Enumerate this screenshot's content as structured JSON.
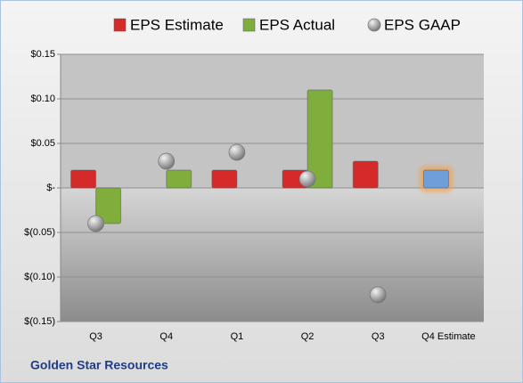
{
  "chart_data": {
    "type": "bar",
    "categories": [
      "Q3",
      "Q4",
      "Q1",
      "Q2",
      "Q3",
      "Q4 Estimate"
    ],
    "series": [
      {
        "name": "EPS Estimate",
        "color": "#d42a2a",
        "values": [
          0.02,
          null,
          0.02,
          0.02,
          0.03,
          0.02
        ],
        "point_colors": [
          "#d42a2a",
          "#d42a2a",
          "#d42a2a",
          "#d42a2a",
          "#d42a2a",
          "#6f9fd8"
        ]
      },
      {
        "name": "EPS Actual",
        "color": "#7fae3c",
        "values": [
          -0.04,
          0.02,
          null,
          0.11,
          null,
          null
        ]
      },
      {
        "name": "EPS GAAP",
        "color": "#a6a6a6",
        "type": "scatter",
        "values": [
          -0.04,
          0.03,
          0.04,
          0.01,
          -0.12,
          null
        ]
      }
    ],
    "ylim": [
      -0.15,
      0.15
    ],
    "yticks": [
      {
        "value": 0.15,
        "label": "$0.15"
      },
      {
        "value": 0.1,
        "label": "$0.10"
      },
      {
        "value": 0.05,
        "label": "$0.05"
      },
      {
        "value": 0,
        "label": "$-"
      },
      {
        "value": -0.05,
        "label": "$(0.05)"
      },
      {
        "value": -0.1,
        "label": "$(0.10)"
      },
      {
        "value": -0.15,
        "label": "$(0.15)"
      }
    ],
    "grid": true,
    "footer": "Golden Star Resources"
  }
}
